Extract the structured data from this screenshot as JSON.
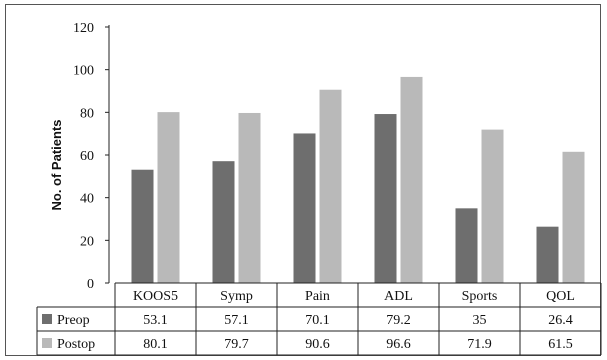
{
  "chart_data": {
    "type": "bar",
    "ylabel": "No. of Patients",
    "ylim": [
      0,
      120
    ],
    "yticks": [
      0,
      20,
      40,
      60,
      80,
      100,
      120
    ],
    "grid": false,
    "legend": "data-table-rows",
    "categories": [
      "KOOS5",
      "Symp",
      "Pain",
      "ADL",
      "Sports",
      "QOL"
    ],
    "series": [
      {
        "name": "Preop",
        "values": [
          53.1,
          57.1,
          70.1,
          79.2,
          35,
          26.4
        ],
        "color": "#6e6e6e"
      },
      {
        "name": "Postop",
        "values": [
          80.1,
          79.7,
          90.6,
          96.6,
          71.9,
          61.5
        ],
        "color": "#b9b9b9"
      }
    ]
  }
}
